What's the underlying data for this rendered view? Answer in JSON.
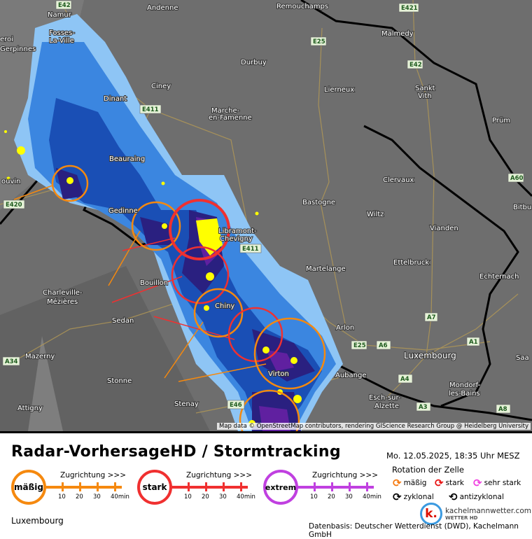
{
  "map": {
    "labels": [
      "Namur",
      "Andenne",
      "Remouchamps",
      "Fosses-",
      "La-Ville",
      "Malmedy",
      "Durbuy",
      "Sankt",
      "Vith",
      "Lierneux",
      "Ciney",
      "Dinant",
      "Marche-",
      "en-Famenne",
      "Prüm",
      "Beauraing",
      "Clervaux",
      "Gedinne",
      "Bastogne",
      "Wiltz",
      "Bitbu",
      "Libramont-",
      "Chevigny",
      "Vianden",
      "Ettelbruck",
      "Martelange",
      "Bouillon",
      "Charleville-",
      "Mézières",
      "Echternach",
      "Chiny",
      "Sedan",
      "Arlon",
      "Luxembourg",
      "Mazerny",
      "Saa",
      "Aubange",
      "Stonne",
      "Mondorf-",
      "les-Bains",
      "Esch-sur-",
      "Alzette",
      "Attigny",
      "Stenay",
      "ouvin",
      "Gerpinnes",
      "eroi",
      "Virton",
      "Sankt"
    ],
    "roads": [
      "E42",
      "E421",
      "E25",
      "E42",
      "E411",
      "A60",
      "E420",
      "E411",
      "A7",
      "E25",
      "A6",
      "A1",
      "A34",
      "A4",
      "A3",
      "A8",
      "E46"
    ],
    "attribution": "Map data © OpenStreetMap contributors, rendering GIScience Research Group @ Heidelberg University"
  },
  "legend": {
    "title": "Radar-VorhersageHD / Stormtracking",
    "datetime": "Mo. 12.05.2025, 18:35 Uhr MESZ",
    "direction_label": "Zugrichtung >>>",
    "ticks": [
      "10",
      "20",
      "30",
      "40min"
    ],
    "scales": [
      {
        "label": "mäßig",
        "color": "#f5890f"
      },
      {
        "label": "stark",
        "color": "#f03030"
      },
      {
        "label": "extrem",
        "color": "#c040e0"
      }
    ],
    "rotation_title": "Rotation der Zelle",
    "rotation": [
      {
        "label": "mäßig",
        "color": "#f57a10"
      },
      {
        "label": "stark",
        "color": "#e81010"
      },
      {
        "label": "sehr stark",
        "color": "#f040e0"
      },
      {
        "label": "zyklonal",
        "color": "#000000"
      },
      {
        "label": "antizyklonal",
        "color": "#000000"
      }
    ],
    "location": "Luxembourg",
    "logo_text": "kachelmannwetter.com",
    "logo_sub": "WETTER HD",
    "logo_letter": "k.",
    "source": "Datenbasis: Deutscher Wetterdienst (DWD), Kachelmann GmbH"
  }
}
